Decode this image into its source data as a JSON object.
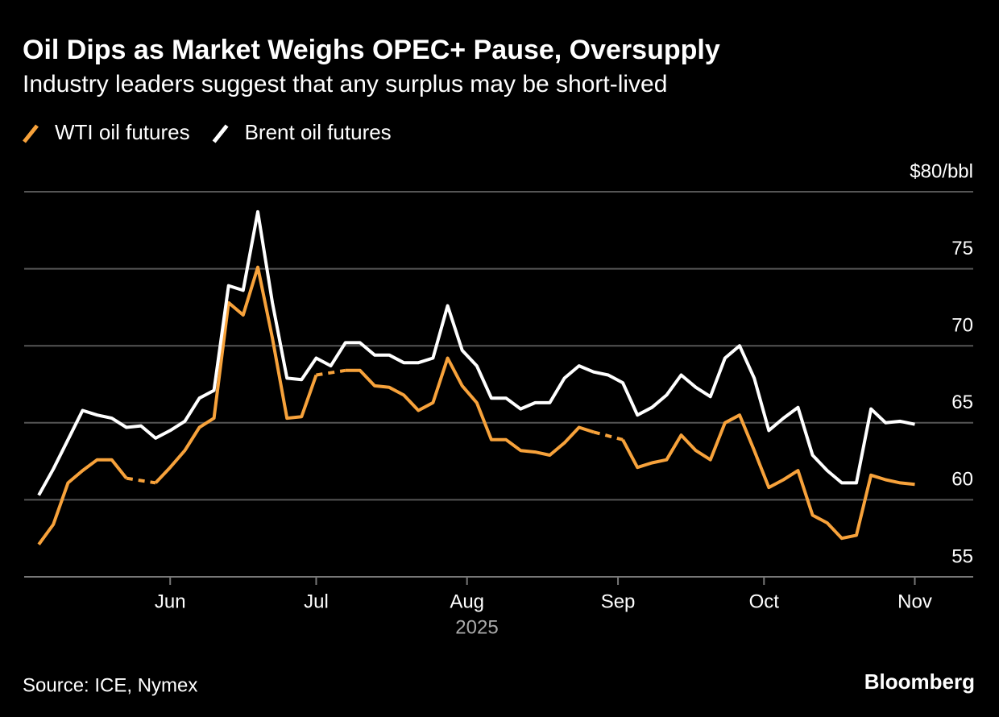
{
  "chart_data": {
    "type": "line",
    "title": "Oil Dips as Market Weighs OPEC+ Pause, Oversupply",
    "subtitle": "Industry leaders suggest that any surplus may be short-lived",
    "x_label": "2025",
    "source": "Source: ICE, Nymex",
    "brand": "Bloomberg",
    "grid": true,
    "legend": "top-left",
    "xlim": [
      -1,
      64
    ],
    "xticks": [
      {
        "value": 9,
        "label": "Jun"
      },
      {
        "value": 19,
        "label": "Jul"
      },
      {
        "value": 29.33,
        "label": "Aug"
      },
      {
        "value": 39.67,
        "label": "Sep"
      },
      {
        "value": 49.67,
        "label": "Oct"
      },
      {
        "value": 60,
        "label": "Nov"
      }
    ],
    "ylim": [
      55,
      80
    ],
    "yticks": [
      55,
      60,
      65,
      70,
      75,
      {
        "value": 80,
        "label": "$80/bbl"
      }
    ],
    "series": [
      {
        "name": "WTI oil futures",
        "color": "#f7a23b",
        "values": [
          57.1,
          58.4,
          61.1,
          61.9,
          62.6,
          62.6,
          61.4,
          null,
          61.1,
          62.1,
          63.2,
          64.7,
          65.3,
          72.8,
          72.0,
          75.1,
          70.5,
          65.3,
          65.4,
          68.1,
          null,
          68.4,
          68.4,
          67.4,
          67.3,
          66.8,
          65.8,
          66.3,
          69.2,
          67.4,
          66.3,
          63.9,
          63.9,
          63.2,
          63.1,
          62.9,
          63.7,
          64.7,
          64.4,
          null,
          63.9,
          62.1,
          62.4,
          62.6,
          64.2,
          63.2,
          62.6,
          65.0,
          65.5,
          63.2,
          60.8,
          61.3,
          61.9,
          59.0,
          58.5,
          57.5,
          57.7,
          61.6,
          61.3,
          61.1,
          61.0
        ]
      },
      {
        "name": "Brent oil futures",
        "color": "#ffffff",
        "values": [
          60.3,
          62.0,
          63.9,
          65.8,
          65.5,
          65.3,
          64.7,
          64.8,
          64.0,
          64.5,
          65.1,
          66.6,
          67.1,
          73.9,
          73.6,
          78.7,
          72.8,
          67.9,
          67.8,
          69.2,
          68.7,
          70.2,
          70.2,
          69.4,
          69.4,
          68.9,
          68.9,
          69.2,
          72.6,
          69.7,
          68.7,
          66.6,
          66.6,
          65.9,
          66.3,
          66.3,
          67.9,
          68.7,
          68.3,
          68.1,
          67.6,
          65.5,
          66.0,
          66.8,
          68.1,
          67.3,
          66.7,
          69.2,
          70.0,
          67.9,
          64.5,
          65.3,
          66.0,
          62.9,
          61.9,
          61.1,
          61.1,
          65.9,
          65.0,
          65.1,
          64.9
        ]
      }
    ]
  }
}
